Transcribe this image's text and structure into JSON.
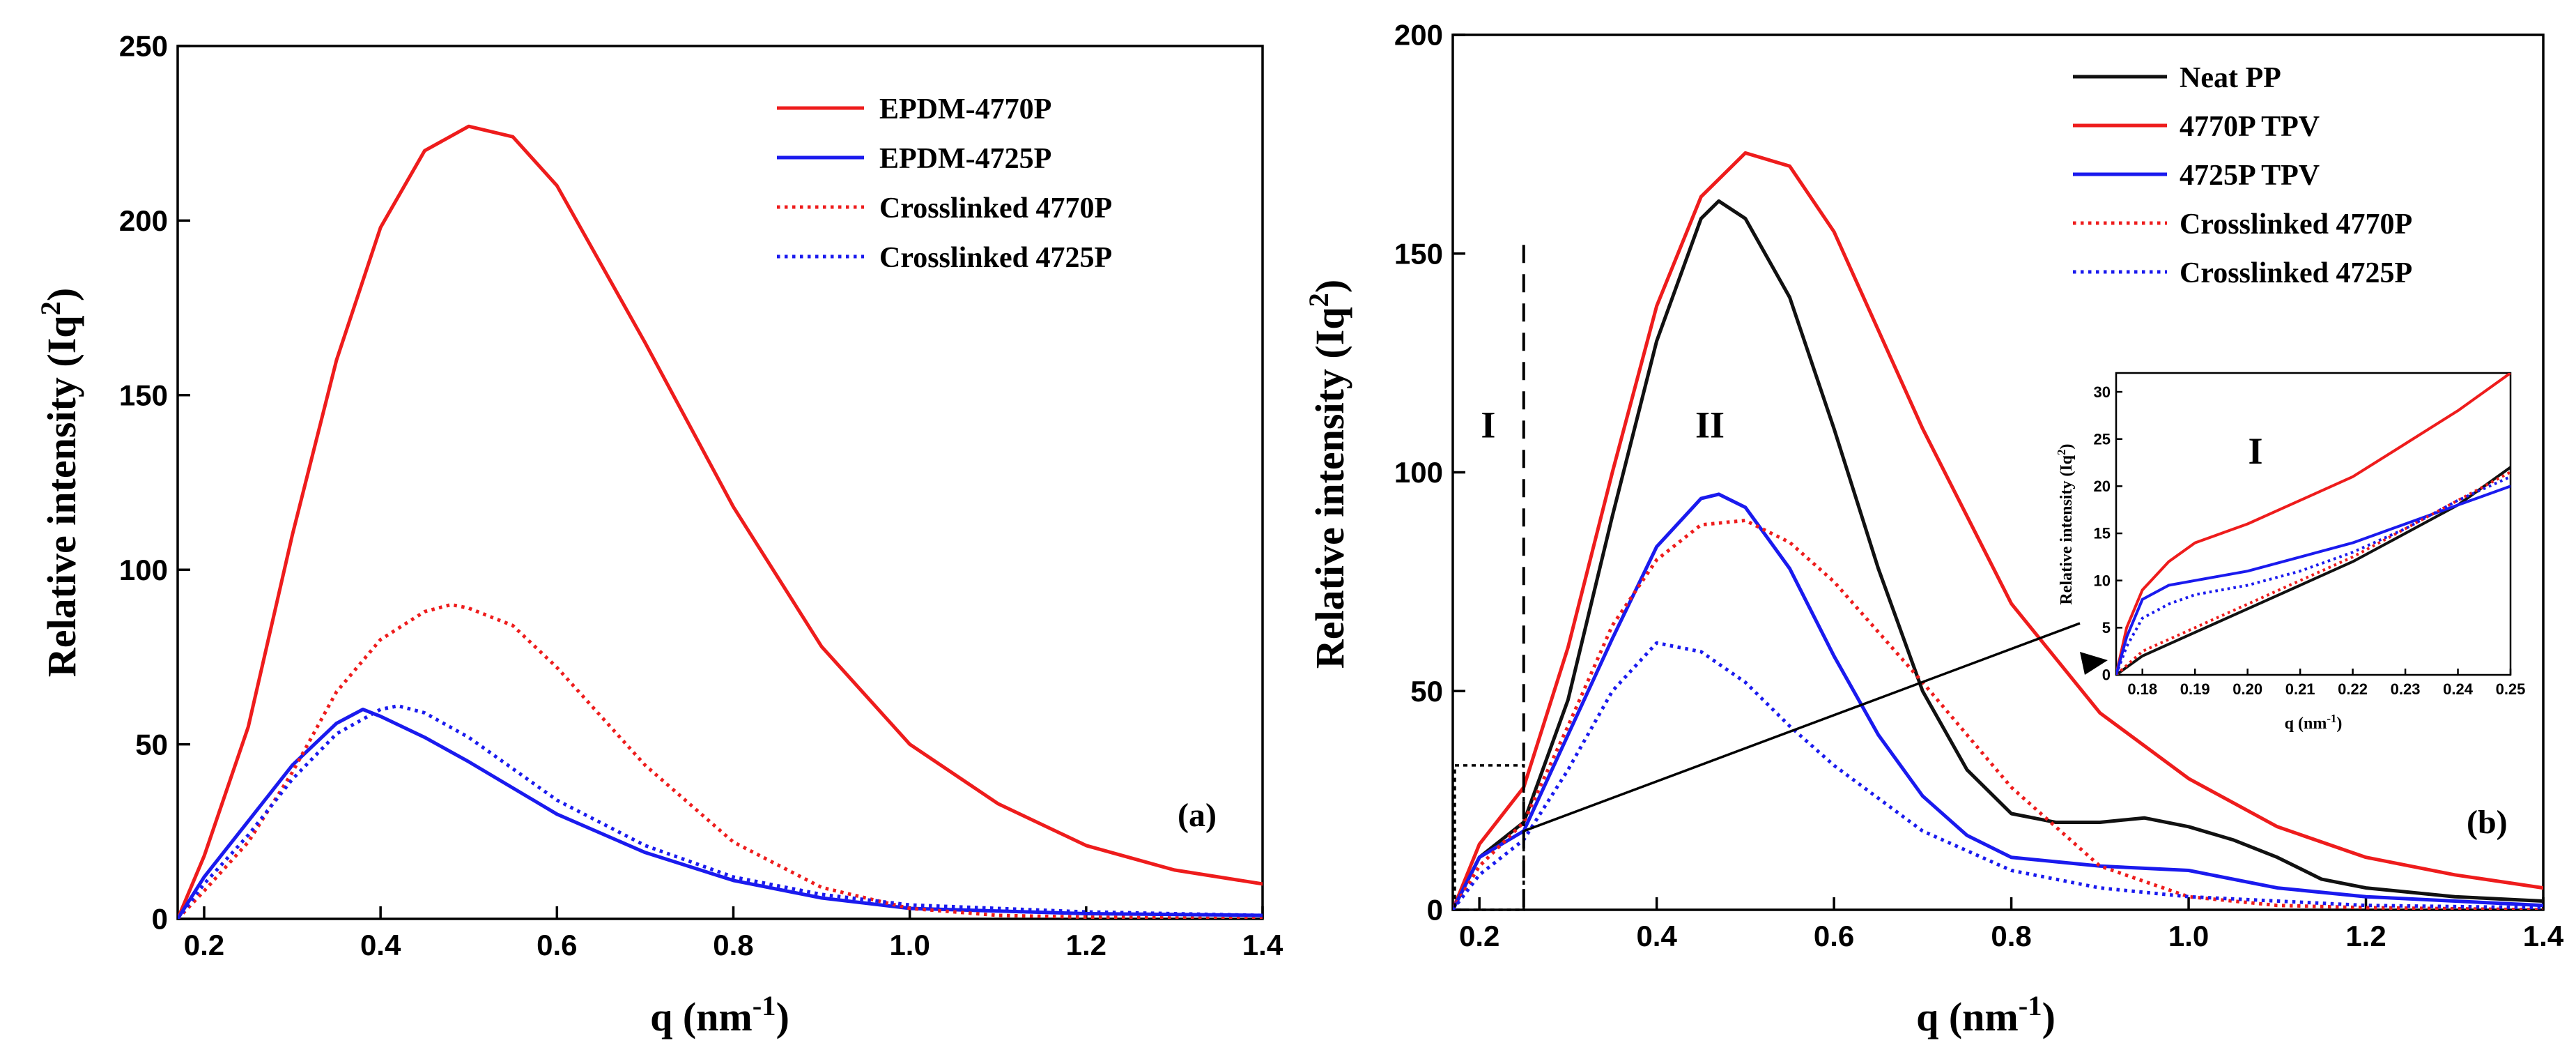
{
  "colors": {
    "red": "#ee1c1c",
    "blue": "#1a1aee",
    "black": "#111111"
  },
  "chart_data": [
    {
      "type": "line",
      "panel_label": "(a)",
      "xlabel": "q (nm",
      "xlabel_sup": "-1",
      "xlabel_close": ")",
      "ylabel": "Relative intensity (Iq",
      "ylabel_sup": "2",
      "ylabel_close": ")",
      "xlim": [
        0.17,
        1.4
      ],
      "ylim": [
        0,
        250
      ],
      "xticks": [
        "0.2",
        "0.4",
        "0.6",
        "0.8",
        "1.0",
        "1.2",
        "1.4"
      ],
      "yticks": [
        "0",
        "50",
        "100",
        "150",
        "200",
        "250"
      ],
      "series": [
        {
          "name": "EPDM-4770P",
          "color": "#ee1c1c",
          "dash": "solid",
          "x": [
            0.17,
            0.2,
            0.25,
            0.3,
            0.35,
            0.4,
            0.45,
            0.5,
            0.55,
            0.6,
            0.7,
            0.8,
            0.9,
            1.0,
            1.1,
            1.2,
            1.3,
            1.4
          ],
          "y": [
            0,
            18,
            55,
            110,
            160,
            198,
            220,
            227,
            224,
            210,
            165,
            118,
            78,
            50,
            33,
            21,
            14,
            10
          ]
        },
        {
          "name": "EPDM-4725P",
          "color": "#1a1aee",
          "dash": "solid",
          "x": [
            0.17,
            0.2,
            0.25,
            0.3,
            0.35,
            0.38,
            0.4,
            0.45,
            0.5,
            0.6,
            0.7,
            0.8,
            0.9,
            1.0,
            1.2,
            1.4
          ],
          "y": [
            0,
            12,
            28,
            44,
            56,
            60,
            58,
            52,
            45,
            30,
            19,
            11,
            6,
            3,
            1.5,
            1
          ]
        },
        {
          "name": "Crosslinked 4770P",
          "color": "#ee1c1c",
          "dash": "dotted",
          "x": [
            0.17,
            0.2,
            0.25,
            0.3,
            0.35,
            0.4,
            0.45,
            0.48,
            0.5,
            0.55,
            0.6,
            0.7,
            0.8,
            0.9,
            1.0,
            1.1,
            1.2,
            1.4
          ],
          "y": [
            0,
            8,
            22,
            42,
            65,
            80,
            88,
            90,
            89,
            84,
            72,
            44,
            22,
            9,
            3,
            1,
            0.5,
            0
          ]
        },
        {
          "name": "Crosslinked 4725P",
          "color": "#1a1aee",
          "dash": "dotted",
          "x": [
            0.17,
            0.2,
            0.25,
            0.3,
            0.35,
            0.4,
            0.42,
            0.45,
            0.5,
            0.6,
            0.7,
            0.8,
            0.9,
            1.0,
            1.2,
            1.4
          ],
          "y": [
            0,
            10,
            24,
            40,
            53,
            60,
            61,
            59,
            52,
            34,
            21,
            12,
            7,
            4,
            2,
            1
          ]
        }
      ]
    },
    {
      "type": "line",
      "panel_label": "(b)",
      "xlabel": "q (nm",
      "xlabel_sup": "-1",
      "xlabel_close": ")",
      "ylabel": "Relative intensity (Iq",
      "ylabel_sup": "2",
      "ylabel_close": ")",
      "xlim": [
        0.17,
        1.4
      ],
      "ylim": [
        0,
        200
      ],
      "xticks": [
        "0.2",
        "0.4",
        "0.6",
        "0.8",
        "1.0",
        "1.2",
        "1.4"
      ],
      "yticks": [
        "0",
        "50",
        "100",
        "150",
        "200"
      ],
      "region_labels": [
        "I",
        "II"
      ],
      "series": [
        {
          "name": "Neat PP",
          "color": "#111111",
          "dash": "solid",
          "x": [
            0.17,
            0.2,
            0.25,
            0.3,
            0.35,
            0.4,
            0.45,
            0.47,
            0.5,
            0.55,
            0.6,
            0.65,
            0.7,
            0.75,
            0.8,
            0.85,
            0.9,
            0.95,
            1.0,
            1.05,
            1.1,
            1.15,
            1.2,
            1.3,
            1.4
          ],
          "y": [
            0,
            12,
            20,
            48,
            90,
            130,
            158,
            162,
            158,
            140,
            110,
            78,
            50,
            32,
            22,
            20,
            20,
            21,
            19,
            16,
            12,
            7,
            5,
            3,
            2
          ]
        },
        {
          "name": "4770P TPV",
          "color": "#ee1c1c",
          "dash": "solid",
          "x": [
            0.17,
            0.2,
            0.25,
            0.3,
            0.35,
            0.4,
            0.45,
            0.5,
            0.55,
            0.6,
            0.7,
            0.8,
            0.9,
            1.0,
            1.1,
            1.2,
            1.3,
            1.4
          ],
          "y": [
            0,
            15,
            28,
            60,
            100,
            138,
            163,
            173,
            170,
            155,
            110,
            70,
            45,
            30,
            19,
            12,
            8,
            5
          ]
        },
        {
          "name": "4725P TPV",
          "color": "#1a1aee",
          "dash": "solid",
          "x": [
            0.17,
            0.2,
            0.25,
            0.3,
            0.35,
            0.4,
            0.45,
            0.47,
            0.5,
            0.55,
            0.6,
            0.65,
            0.7,
            0.75,
            0.8,
            0.85,
            0.9,
            1.0,
            1.1,
            1.2,
            1.4
          ],
          "y": [
            0,
            12,
            18,
            40,
            62,
            83,
            94,
            95,
            92,
            78,
            58,
            40,
            26,
            17,
            12,
            11,
            10,
            9,
            5,
            3,
            1
          ]
        },
        {
          "name": "Crosslinked 4770P",
          "color": "#ee1c1c",
          "dash": "dotted",
          "x": [
            0.17,
            0.2,
            0.25,
            0.3,
            0.35,
            0.4,
            0.45,
            0.5,
            0.55,
            0.6,
            0.7,
            0.8,
            0.9,
            1.0,
            1.1,
            1.2,
            1.4
          ],
          "y": [
            0,
            10,
            20,
            42,
            65,
            80,
            88,
            89,
            84,
            75,
            52,
            28,
            10,
            3,
            1,
            0.5,
            0
          ]
        },
        {
          "name": "Crosslinked 4725P",
          "color": "#1a1aee",
          "dash": "dotted",
          "x": [
            0.17,
            0.2,
            0.25,
            0.3,
            0.35,
            0.4,
            0.45,
            0.5,
            0.55,
            0.6,
            0.7,
            0.8,
            0.9,
            1.0,
            1.2,
            1.4
          ],
          "y": [
            0,
            8,
            16,
            32,
            50,
            61,
            59,
            52,
            42,
            33,
            18,
            9,
            5,
            3,
            1,
            0.5
          ]
        }
      ],
      "inset": {
        "label": "I",
        "xlabel": "q (nm",
        "xlabel_sup": "-1",
        "xlabel_close": ")",
        "ylabel": "Relative intensity (Iq",
        "ylabel_sup": "2",
        "ylabel_close": ")",
        "xlim": [
          0.175,
          0.25
        ],
        "ylim": [
          0,
          32
        ],
        "xticks": [
          "0.18",
          "0.19",
          "0.20",
          "0.21",
          "0.22",
          "0.23",
          "0.24",
          "0.25"
        ],
        "yticks": [
          "0",
          "5",
          "10",
          "15",
          "20",
          "25",
          "30"
        ],
        "series": [
          {
            "name": "Neat PP",
            "color": "#111111",
            "dash": "solid",
            "x": [
              0.175,
              0.18,
              0.19,
              0.2,
              0.21,
              0.22,
              0.23,
              0.24,
              0.25
            ],
            "y": [
              0,
              2,
              4.5,
              7,
              9.5,
              12,
              15,
              18,
              22
            ]
          },
          {
            "name": "4770P TPV",
            "color": "#ee1c1c",
            "dash": "solid",
            "x": [
              0.175,
              0.177,
              0.18,
              0.185,
              0.19,
              0.2,
              0.21,
              0.22,
              0.23,
              0.24,
              0.25
            ],
            "y": [
              0,
              5,
              9,
              12,
              14,
              16,
              18.5,
              21,
              24.5,
              28,
              32
            ]
          },
          {
            "name": "4725P TPV",
            "color": "#1a1aee",
            "dash": "solid",
            "x": [
              0.175,
              0.177,
              0.18,
              0.185,
              0.19,
              0.2,
              0.21,
              0.22,
              0.23,
              0.24,
              0.25
            ],
            "y": [
              0,
              4,
              8,
              9.5,
              10,
              11,
              12.5,
              14,
              16,
              18,
              20
            ]
          },
          {
            "name": "Crosslinked 4770P",
            "color": "#ee1c1c",
            "dash": "dotted",
            "x": [
              0.175,
              0.18,
              0.19,
              0.2,
              0.21,
              0.22,
              0.23,
              0.24,
              0.25
            ],
            "y": [
              0,
              2.5,
              5,
              7.5,
              10,
              12.5,
              15.5,
              18.5,
              21.5
            ]
          },
          {
            "name": "Crosslinked 4725P",
            "color": "#1a1aee",
            "dash": "dotted",
            "x": [
              0.175,
              0.177,
              0.18,
              0.185,
              0.19,
              0.2,
              0.21,
              0.22,
              0.23,
              0.24,
              0.25
            ],
            "y": [
              0,
              3,
              6,
              7.5,
              8.5,
              9.5,
              11,
              13,
              15.5,
              18.5,
              21
            ]
          }
        ]
      }
    }
  ]
}
